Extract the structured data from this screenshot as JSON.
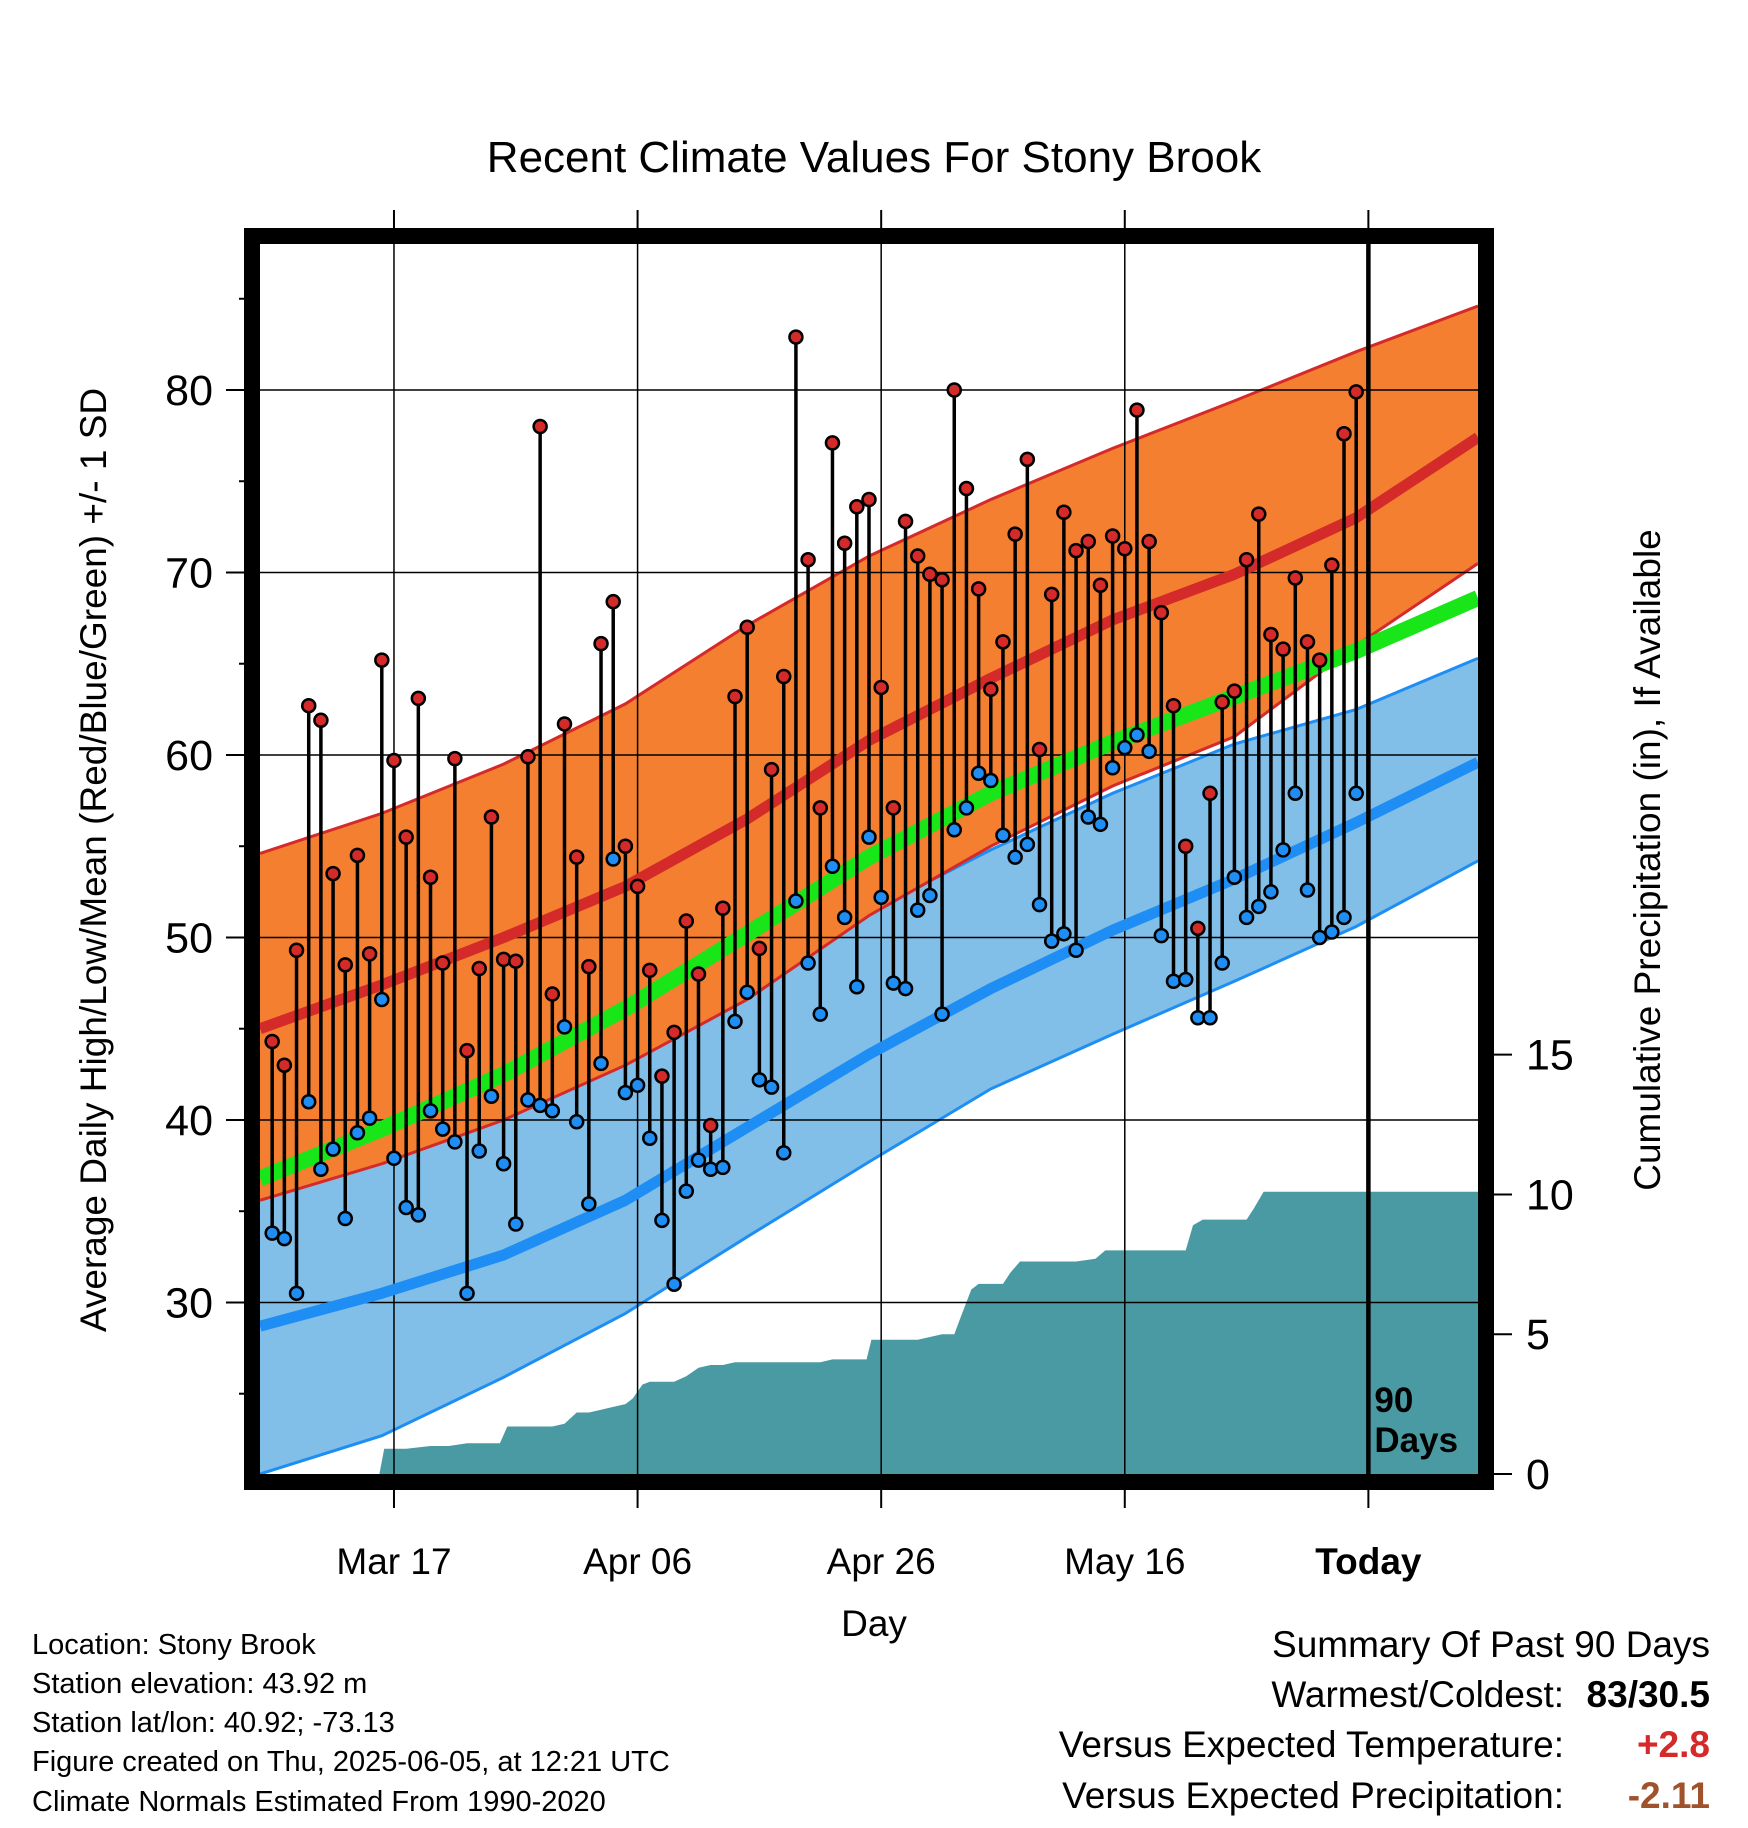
{
  "chart_data": {
    "type": "line",
    "title": "Recent Climate Values For Stony Brook",
    "xlabel": "Day",
    "ylabel_left": "Average Daily High/Low/Mean (Red/Blue/Green) +/- 1 SD",
    "ylabel_right": "Cumulative Precipitation (in), If Available",
    "y_ticks_left": [
      30,
      40,
      50,
      60,
      70,
      80
    ],
    "y_ticks_right": [
      0,
      5,
      10,
      15
    ],
    "x_tick_labels": [
      "Mar 17",
      "Apr 06",
      "Apr 26",
      "May 16",
      "Today"
    ],
    "x_tick_days": [
      11,
      31,
      51,
      71,
      91
    ],
    "xlim": [
      0,
      100
    ],
    "ylim": [
      20.6,
      88
    ],
    "ylim_precip": [
      0,
      44
    ],
    "today_day": 91,
    "today_label": "90 Days",
    "colors": {
      "normal_high": "#d42a2a",
      "normal_high_band": "#f47f30",
      "normal_low": "#1e8ef5",
      "normal_low_band": "#82bfe8",
      "normal_mean": "#19e619",
      "precip": "#4a9aa3",
      "obs_high_marker": "#d42a2a",
      "obs_low_marker": "#1e8ef5"
    },
    "normal_high": {
      "x": [
        0,
        10,
        20,
        30,
        40,
        50,
        60,
        70,
        80,
        90,
        100
      ],
      "mean": [
        45.0,
        47.4,
        50.0,
        52.8,
        56.5,
        60.8,
        64.2,
        67.4,
        69.9,
        73.0,
        77.4
      ],
      "upper": [
        54.6,
        56.8,
        59.5,
        62.8,
        67.1,
        70.9,
        74.0,
        76.8,
        79.4,
        82.1,
        84.6
      ],
      "lower": [
        35.6,
        37.6,
        40.0,
        43.0,
        46.6,
        51.2,
        55.0,
        58.3,
        61.0,
        66.0,
        70.5
      ]
    },
    "normal_low": {
      "x": [
        0,
        10,
        20,
        30,
        40,
        50,
        60,
        70,
        80,
        90,
        100
      ],
      "mean": [
        28.7,
        30.5,
        32.6,
        35.6,
        39.6,
        43.6,
        47.2,
        50.4,
        53.2,
        56.3,
        59.6
      ],
      "upper": [
        36.6,
        38.7,
        40.9,
        43.9,
        47.4,
        51.4,
        54.8,
        57.9,
        60.6,
        62.5,
        65.3
      ],
      "lower": [
        20.6,
        22.7,
        25.9,
        29.4,
        33.6,
        37.7,
        41.7,
        44.7,
        47.6,
        50.6,
        54.2
      ]
    },
    "normal_mean": {
      "x": [
        0,
        10,
        20,
        30,
        40,
        50,
        60,
        70,
        80,
        90,
        100
      ],
      "values": [
        36.8,
        39.5,
        42.5,
        46.1,
        50.2,
        54.4,
        57.9,
        60.7,
        63.2,
        65.7,
        68.6
      ]
    },
    "daily_high": [
      44.3,
      43.0,
      49.3,
      62.7,
      61.9,
      53.5,
      48.5,
      54.5,
      49.1,
      65.2,
      59.7,
      55.5,
      63.1,
      53.3,
      48.6,
      59.8,
      43.8,
      48.3,
      56.6,
      48.8,
      48.7,
      59.9,
      78.0,
      46.9,
      61.7,
      54.4,
      48.4,
      66.1,
      68.4,
      55.0,
      52.8,
      48.2,
      42.4,
      44.8,
      50.9,
      48.0,
      39.7,
      51.6,
      63.2,
      67.0,
      49.4,
      59.2,
      64.3,
      82.9,
      70.7,
      57.1,
      77.1,
      71.6,
      73.6,
      74.0,
      63.7,
      57.1,
      72.8,
      70.9,
      69.9,
      69.6,
      80.0,
      74.6,
      69.1,
      63.6,
      66.2,
      72.1,
      76.2,
      60.3,
      68.8,
      73.3,
      71.2,
      71.7,
      69.3,
      72.0,
      71.3,
      78.9,
      71.7,
      67.8,
      62.7,
      55.0,
      50.5,
      57.9,
      62.9,
      63.5,
      70.7,
      73.2,
      66.6,
      65.8,
      69.7,
      66.2,
      65.2,
      70.4,
      77.6,
      79.9
    ],
    "daily_low": [
      33.8,
      33.5,
      30.5,
      41.0,
      37.3,
      38.4,
      34.6,
      39.3,
      40.1,
      46.6,
      37.9,
      35.2,
      34.8,
      40.5,
      39.5,
      38.8,
      30.5,
      38.3,
      41.3,
      37.6,
      34.3,
      41.1,
      40.8,
      40.5,
      45.1,
      39.9,
      35.4,
      43.1,
      54.3,
      41.5,
      41.9,
      39.0,
      34.5,
      31.0,
      36.1,
      37.8,
      37.3,
      37.4,
      45.4,
      47.0,
      42.2,
      41.8,
      38.2,
      52.0,
      48.6,
      45.8,
      53.9,
      51.1,
      47.3,
      55.5,
      52.2,
      47.5,
      47.2,
      51.5,
      52.3,
      45.8,
      55.9,
      57.1,
      59.0,
      58.6,
      55.6,
      54.4,
      55.1,
      51.8,
      49.8,
      50.2,
      49.3,
      56.6,
      56.2,
      59.3,
      60.4,
      61.1,
      60.2,
      50.1,
      47.6,
      47.7,
      45.6,
      45.6,
      48.6,
      53.3,
      51.1,
      51.7,
      52.5,
      54.8,
      57.9,
      52.6,
      50.0,
      50.3,
      51.1,
      57.9
    ],
    "precip": {
      "x": [
        0,
        9.8,
        10.2,
        12,
        14,
        15.5,
        17,
        18,
        19.7,
        20.3,
        24,
        25,
        26,
        27,
        28,
        29,
        30,
        30.6,
        31.4,
        32,
        34,
        35,
        36,
        37,
        38,
        39,
        40,
        41,
        46,
        47,
        48,
        49,
        49.8,
        50.2,
        52,
        53,
        54,
        55,
        56,
        57,
        57.6,
        58.4,
        59,
        61,
        61.6,
        62.4,
        65,
        67,
        68.6,
        69.4,
        74,
        76,
        76.6,
        77.4,
        80,
        81,
        81.6,
        82.4,
        100
      ],
      "values": [
        0,
        0,
        0.9,
        0.9,
        1.0,
        1.0,
        1.1,
        1.1,
        1.1,
        1.7,
        1.7,
        1.8,
        2.2,
        2.2,
        2.3,
        2.4,
        2.5,
        2.7,
        3.2,
        3.3,
        3.3,
        3.5,
        3.8,
        3.9,
        3.9,
        4.0,
        4.0,
        4.0,
        4.0,
        4.1,
        4.1,
        4.1,
        4.1,
        4.8,
        4.8,
        4.8,
        4.8,
        4.9,
        5.0,
        5.0,
        5.7,
        6.6,
        6.8,
        6.8,
        7.2,
        7.6,
        7.6,
        7.6,
        7.7,
        8.0,
        8.0,
        8.0,
        8.9,
        9.1,
        9.1,
        9.1,
        9.5,
        10.1,
        10.1
      ]
    }
  },
  "footer": {
    "location": "Location: Stony Brook",
    "elevation": "Station elevation: 43.92 m",
    "latlon": "Station lat/lon: 40.92; -73.13",
    "created": "Figure created on Thu, 2025-06-05, at 12:21 UTC",
    "normals": "Climate Normals Estimated From 1990-2020"
  },
  "summary": {
    "heading": "Summary Of Past 90 Days",
    "warmest_label": "Warmest/Coldest:",
    "warmest_value": "83/30.5",
    "temp_label": "Versus Expected Temperature:",
    "temp_value": "+2.8",
    "precip_label": "Versus Expected Precipitation:",
    "precip_value": "-2.11",
    "temp_value_color": "#d42a2a",
    "precip_value_color": "#a0522d"
  }
}
